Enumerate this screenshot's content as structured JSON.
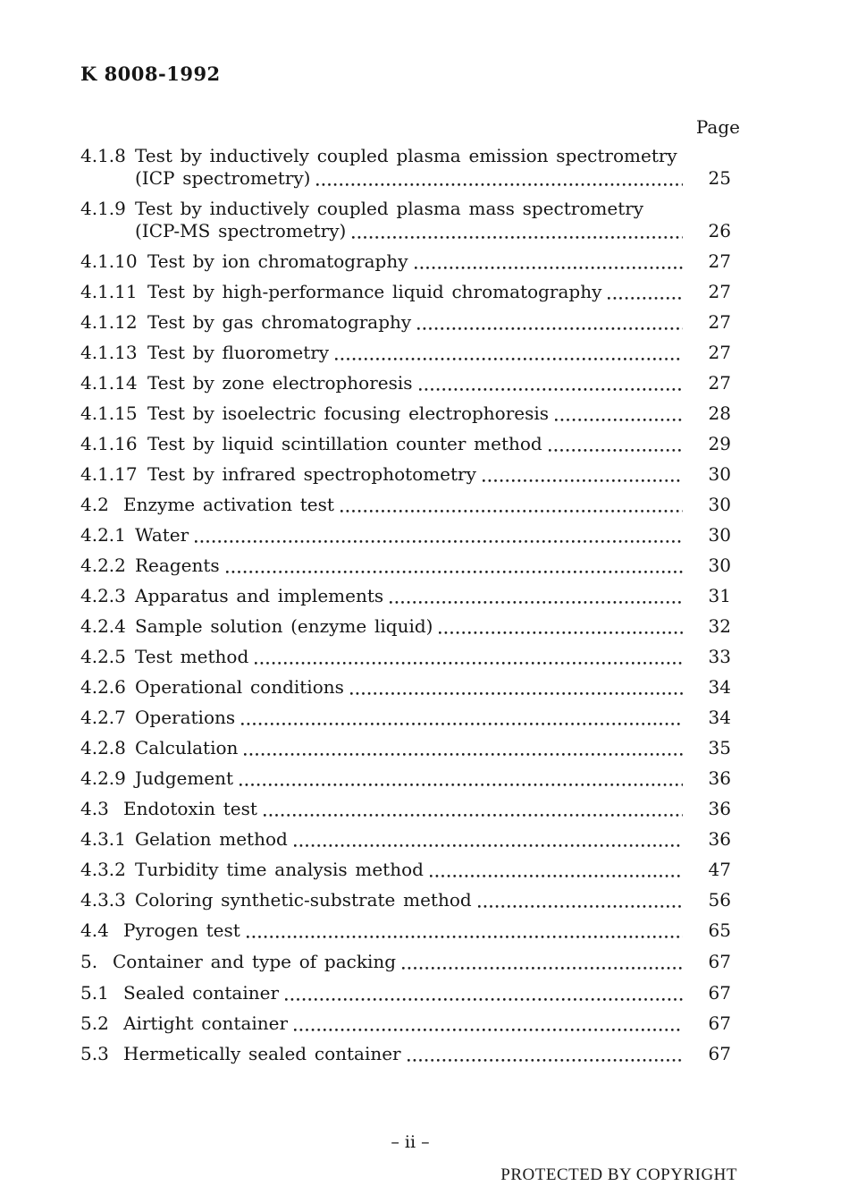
{
  "header": {
    "standard_number": "K 8008-1992"
  },
  "toc": {
    "page_column_label": "Page",
    "entries": [
      {
        "num": "4.1.8",
        "title": "Test by inductively coupled plasma emission spectrometry",
        "title2": "(ICP spectrometry)",
        "page": "25"
      },
      {
        "num": "4.1.9",
        "title": "Test by inductively coupled plasma mass spectrometry",
        "title2": "(ICP-MS spectrometry)",
        "page": "26"
      },
      {
        "num": "4.1.10",
        "title": "Test by ion chromatography",
        "page": "27"
      },
      {
        "num": "4.1.11",
        "title": "Test by high-performance liquid chromatography",
        "page": "27"
      },
      {
        "num": "4.1.12",
        "title": "Test by gas chromatography",
        "page": "27"
      },
      {
        "num": "4.1.13",
        "title": "Test by fluorometry",
        "page": "27"
      },
      {
        "num": "4.1.14",
        "title": "Test by zone electrophoresis",
        "page": "27"
      },
      {
        "num": "4.1.15",
        "title": "Test by isoelectric focusing electrophoresis",
        "page": "28"
      },
      {
        "num": "4.1.16",
        "title": "Test by liquid scintillation counter method",
        "page": "29"
      },
      {
        "num": "4.1.17",
        "title": "Test by infrared spectrophotometry",
        "page": "30"
      },
      {
        "num": "4.2",
        "title": "Enzyme activation test",
        "page": "30"
      },
      {
        "num": "4.2.1",
        "title": "Water",
        "page": "30"
      },
      {
        "num": "4.2.2",
        "title": "Reagents",
        "page": "30"
      },
      {
        "num": "4.2.3",
        "title": "Apparatus and implements",
        "page": "31"
      },
      {
        "num": "4.2.4",
        "title": "Sample solution (enzyme liquid)",
        "page": "32"
      },
      {
        "num": "4.2.5",
        "title": "Test method",
        "page": "33"
      },
      {
        "num": "4.2.6",
        "title": "Operational conditions",
        "page": "34"
      },
      {
        "num": "4.2.7",
        "title": "Operations",
        "page": "34"
      },
      {
        "num": "4.2.8",
        "title": "Calculation",
        "page": "35"
      },
      {
        "num": "4.2.9",
        "title": "Judgement",
        "page": "36"
      },
      {
        "num": "4.3",
        "title": "Endotoxin test",
        "page": "36"
      },
      {
        "num": "4.3.1",
        "title": "Gelation method",
        "page": "36"
      },
      {
        "num": "4.3.2",
        "title": "Turbidity time analysis method",
        "page": "47"
      },
      {
        "num": "4.3.3",
        "title": "Coloring synthetic-substrate method",
        "page": "56"
      },
      {
        "num": "4.4",
        "title": "Pyrogen test",
        "page": "65"
      },
      {
        "num": "5.",
        "title": "Container and type of packing",
        "page": "67",
        "space_before": true
      },
      {
        "num": "5.1",
        "title": "Sealed container",
        "page": "67",
        "space_before": true
      },
      {
        "num": "5.2",
        "title": "Airtight container",
        "page": "67"
      },
      {
        "num": "5.3",
        "title": "Hermetically sealed container",
        "page": "67"
      }
    ]
  },
  "footer": {
    "page_number": "– ii –",
    "copyright": "PROTECTED BY COPYRIGHT"
  }
}
